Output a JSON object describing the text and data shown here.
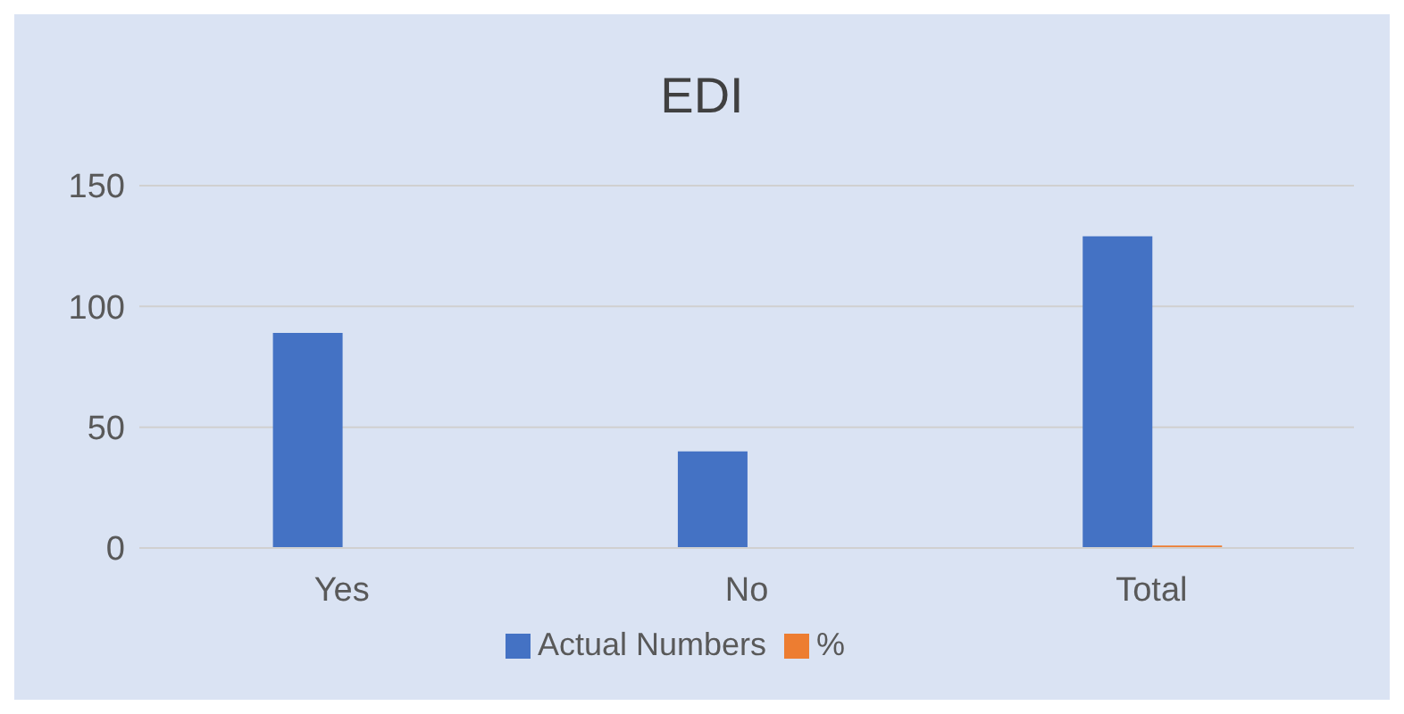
{
  "chart_data": {
    "type": "bar",
    "title": "EDI",
    "categories": [
      "Yes",
      "No",
      "Total"
    ],
    "series": [
      {
        "name": "Actual Numbers",
        "color": "#4472c4",
        "values": [
          89,
          40,
          129
        ]
      },
      {
        "name": "%",
        "color": "#ed7d31",
        "values": [
          null,
          null,
          1
        ]
      }
    ],
    "ylim": [
      0,
      150
    ],
    "yticks": [
      0,
      50,
      100,
      150
    ],
    "grid": "y",
    "legend": "bottom"
  }
}
